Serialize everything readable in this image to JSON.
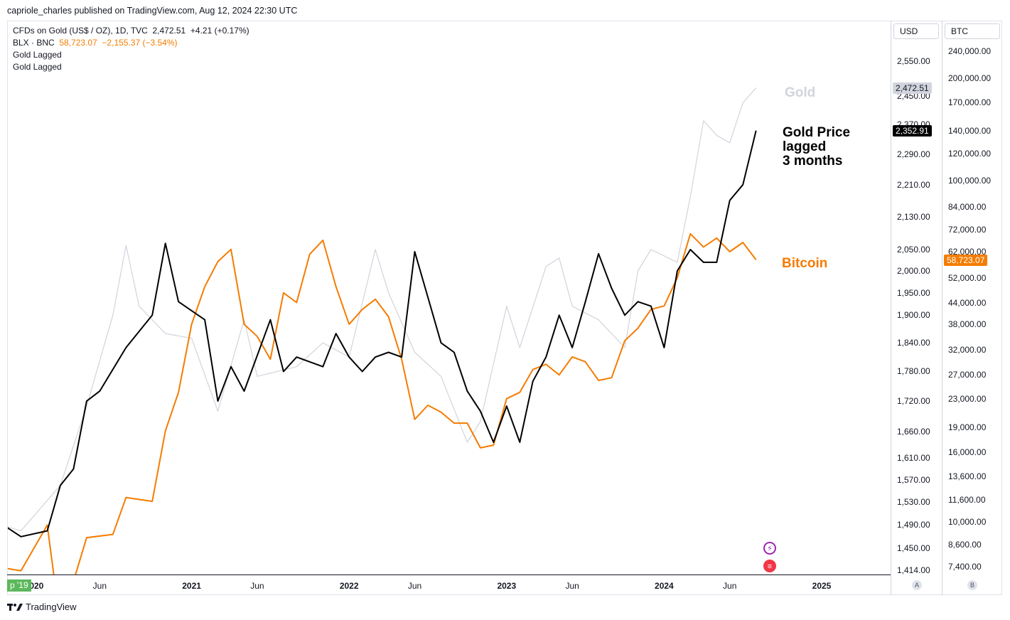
{
  "header": {
    "publisher": "capriole_charles published on TradingView.com, Aug 12, 2024 22:30 UTC"
  },
  "legend": {
    "line1_label": "CFDs on Gold (US$ / OZ), 1D, TVC",
    "line1_value": "2,472.51",
    "line1_change": "+4.21 (+0.17%)",
    "line2_label": "BLX · BNC",
    "line2_value": "58,723.07",
    "line2_change": "−2,155.37 (−3.54%)",
    "line3_label": "Gold Lagged",
    "line4_label": "Gold Lagged"
  },
  "axes": {
    "usd_title": "USD",
    "btc_title": "BTC",
    "usd_ticks": [
      "2,550.00",
      "2,450.00",
      "2,370.00",
      "2,290.00",
      "2,210.00",
      "2,130.00",
      "2,050.00",
      "2,000.00",
      "1,950.00",
      "1,900.00",
      "1,840.00",
      "1,780.00",
      "1,720.00",
      "1,660.00",
      "1,610.00",
      "1,570.00",
      "1,530.00",
      "1,490.00",
      "1,450.00",
      "1,414.00"
    ],
    "btc_ticks": [
      "240,000.00",
      "200,000.00",
      "170,000.00",
      "140,000.00",
      "120,000.00",
      "100,000.00",
      "84,000.00",
      "72,000.00",
      "62,000.00",
      "52,000.00",
      "44,000.00",
      "38,000.00",
      "32,000.00",
      "27,000.00",
      "23,000.00",
      "19,000.00",
      "16,000.00",
      "13,600.00",
      "11,600.00",
      "10,000.00",
      "8,600.00",
      "7,400.00"
    ],
    "x_ticks": [
      {
        "label": "2020",
        "bold": true
      },
      {
        "label": "Jun",
        "bold": false
      },
      {
        "label": "2021",
        "bold": true
      },
      {
        "label": "Jun",
        "bold": false
      },
      {
        "label": "2022",
        "bold": true
      },
      {
        "label": "Jun",
        "bold": false
      },
      {
        "label": "2023",
        "bold": true
      },
      {
        "label": "Jun",
        "bold": false
      },
      {
        "label": "2024",
        "bold": true
      },
      {
        "label": "Jun",
        "bold": false
      },
      {
        "label": "2025",
        "bold": true
      }
    ],
    "start_badge": "p '19",
    "a_button": "A",
    "b_button": "B"
  },
  "price_tags": {
    "gold": "2,472.51",
    "gold_lagged": "2,352.91",
    "bitcoin": "58,723.07"
  },
  "annotations": {
    "gold": "Gold",
    "gold_lagged_line1": "Gold Price",
    "gold_lagged_line2": "lagged",
    "gold_lagged_line3": "3 months",
    "bitcoin": "Bitcoin"
  },
  "colors": {
    "gold": "#d1d4dc",
    "gold_lagged": "#000000",
    "bitcoin": "#f57c00",
    "badge": "#5cb85c"
  },
  "icons": {
    "event1": "lightning-icon",
    "event2": "us-flag-icon"
  },
  "footer": {
    "brand": "TradingView"
  },
  "chart_data": {
    "type": "line",
    "title": "",
    "xlabel": "",
    "ylabel": "",
    "x_range": [
      "2019-09",
      "2025-03"
    ],
    "ylim_usd": [
      1414,
      2550
    ],
    "ylim_btc": [
      7400,
      240000
    ],
    "y_scale": "log",
    "grid": false,
    "series": [
      {
        "name": "Gold",
        "axis": "USD",
        "color": "#d1d4dc",
        "points": [
          [
            "2019-09",
            1500
          ],
          [
            "2019-12",
            1480
          ],
          [
            "2020-03",
            1560
          ],
          [
            "2020-05",
            1710
          ],
          [
            "2020-07",
            1900
          ],
          [
            "2020-08",
            2060
          ],
          [
            "2020-09",
            1920
          ],
          [
            "2020-11",
            1860
          ],
          [
            "2021-01",
            1850
          ],
          [
            "2021-03",
            1700
          ],
          [
            "2021-05",
            1890
          ],
          [
            "2021-06",
            1770
          ],
          [
            "2021-09",
            1790
          ],
          [
            "2021-11",
            1840
          ],
          [
            "2022-01",
            1810
          ],
          [
            "2022-03",
            2050
          ],
          [
            "2022-04",
            1950
          ],
          [
            "2022-06",
            1820
          ],
          [
            "2022-08",
            1770
          ],
          [
            "2022-10",
            1640
          ],
          [
            "2022-11",
            1680
          ],
          [
            "2023-01",
            1920
          ],
          [
            "2023-02",
            1830
          ],
          [
            "2023-04",
            2010
          ],
          [
            "2023-05",
            2030
          ],
          [
            "2023-06",
            1920
          ],
          [
            "2023-08",
            1890
          ],
          [
            "2023-10",
            1830
          ],
          [
            "2023-11",
            2000
          ],
          [
            "2023-12",
            2050
          ],
          [
            "2024-02",
            2020
          ],
          [
            "2024-03",
            2180
          ],
          [
            "2024-04",
            2380
          ],
          [
            "2024-05",
            2340
          ],
          [
            "2024-06",
            2320
          ],
          [
            "2024-07",
            2430
          ],
          [
            "2024-08",
            2472.51
          ]
        ]
      },
      {
        "name": "Gold Lagged",
        "axis": "USD",
        "color": "#000000",
        "points": [
          [
            "2019-09",
            1414
          ],
          [
            "2019-10",
            1500
          ],
          [
            "2019-12",
            1470
          ],
          [
            "2020-02",
            1480
          ],
          [
            "2020-03",
            1560
          ],
          [
            "2020-04",
            1590
          ],
          [
            "2020-05",
            1720
          ],
          [
            "2020-06",
            1740
          ],
          [
            "2020-08",
            1830
          ],
          [
            "2020-10",
            1900
          ],
          [
            "2020-11",
            2065
          ],
          [
            "2020-12",
            1930
          ],
          [
            "2021-02",
            1890
          ],
          [
            "2021-03",
            1720
          ],
          [
            "2021-04",
            1790
          ],
          [
            "2021-05",
            1740
          ],
          [
            "2021-07",
            1890
          ],
          [
            "2021-08",
            1780
          ],
          [
            "2021-09",
            1810
          ],
          [
            "2021-11",
            1790
          ],
          [
            "2021-12",
            1860
          ],
          [
            "2022-01",
            1810
          ],
          [
            "2022-02",
            1780
          ],
          [
            "2022-03",
            1810
          ],
          [
            "2022-04",
            1820
          ],
          [
            "2022-05",
            1810
          ],
          [
            "2022-06",
            2045
          ],
          [
            "2022-07",
            1940
          ],
          [
            "2022-08",
            1840
          ],
          [
            "2022-09",
            1820
          ],
          [
            "2022-10",
            1740
          ],
          [
            "2022-11",
            1700
          ],
          [
            "2022-12",
            1640
          ],
          [
            "2023-01",
            1710
          ],
          [
            "2023-02",
            1640
          ],
          [
            "2023-03",
            1760
          ],
          [
            "2023-04",
            1810
          ],
          [
            "2023-05",
            1900
          ],
          [
            "2023-06",
            1830
          ],
          [
            "2023-07",
            1930
          ],
          [
            "2023-08",
            2040
          ],
          [
            "2023-09",
            1960
          ],
          [
            "2023-10",
            1900
          ],
          [
            "2023-11",
            1930
          ],
          [
            "2023-12",
            1920
          ],
          [
            "2024-01",
            1830
          ],
          [
            "2024-02",
            2000
          ],
          [
            "2024-03",
            2050
          ],
          [
            "2024-04",
            2020
          ],
          [
            "2024-05",
            2020
          ],
          [
            "2024-06",
            2170
          ],
          [
            "2024-07",
            2210
          ],
          [
            "2024-08",
            2352.91
          ]
        ]
      },
      {
        "name": "Bitcoin",
        "axis": "BTC",
        "color": "#f57c00",
        "points": [
          [
            "2019-09",
            8500
          ],
          [
            "2019-11",
            7300
          ],
          [
            "2019-12",
            7200
          ],
          [
            "2020-02",
            9800
          ],
          [
            "2020-03",
            5000
          ],
          [
            "2020-05",
            9000
          ],
          [
            "2020-07",
            9200
          ],
          [
            "2020-08",
            11800
          ],
          [
            "2020-10",
            11500
          ],
          [
            "2020-11",
            18500
          ],
          [
            "2020-12",
            24000
          ],
          [
            "2021-01",
            38000
          ],
          [
            "2021-02",
            49000
          ],
          [
            "2021-03",
            58000
          ],
          [
            "2021-04",
            63000
          ],
          [
            "2021-05",
            38000
          ],
          [
            "2021-06",
            35000
          ],
          [
            "2021-07",
            30000
          ],
          [
            "2021-08",
            47000
          ],
          [
            "2021-09",
            44000
          ],
          [
            "2021-10",
            61000
          ],
          [
            "2021-11",
            67000
          ],
          [
            "2021-12",
            49000
          ],
          [
            "2022-01",
            38000
          ],
          [
            "2022-02",
            42000
          ],
          [
            "2022-03",
            45000
          ],
          [
            "2022-04",
            40000
          ],
          [
            "2022-05",
            30000
          ],
          [
            "2022-06",
            20000
          ],
          [
            "2022-07",
            22000
          ],
          [
            "2022-08",
            21000
          ],
          [
            "2022-09",
            19500
          ],
          [
            "2022-10",
            19500
          ],
          [
            "2022-11",
            16500
          ],
          [
            "2022-12",
            16800
          ],
          [
            "2023-01",
            23000
          ],
          [
            "2023-02",
            24000
          ],
          [
            "2023-03",
            28000
          ],
          [
            "2023-04",
            29000
          ],
          [
            "2023-05",
            27000
          ],
          [
            "2023-06",
            30500
          ],
          [
            "2023-07",
            29500
          ],
          [
            "2023-08",
            26000
          ],
          [
            "2023-09",
            26500
          ],
          [
            "2023-10",
            34000
          ],
          [
            "2023-11",
            37000
          ],
          [
            "2023-12",
            42000
          ],
          [
            "2024-01",
            43000
          ],
          [
            "2024-02",
            52000
          ],
          [
            "2024-03",
            70000
          ],
          [
            "2024-04",
            64000
          ],
          [
            "2024-05",
            68000
          ],
          [
            "2024-06",
            62000
          ],
          [
            "2024-07",
            66000
          ],
          [
            "2024-08",
            58723.07
          ]
        ]
      }
    ]
  }
}
